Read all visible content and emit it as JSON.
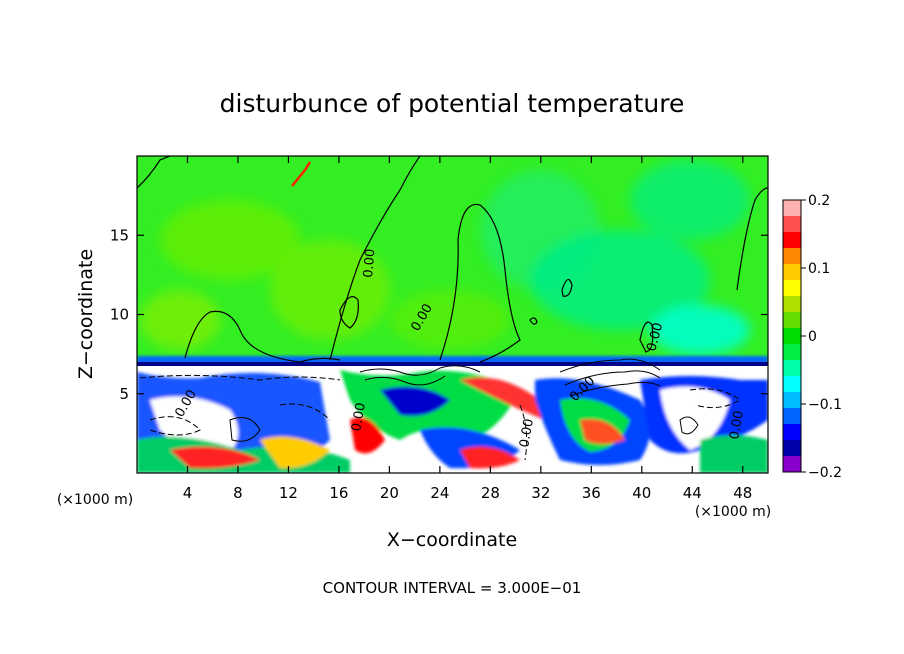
{
  "chart_data": {
    "type": "heatmap",
    "title": "disturbunce of potential temperature",
    "xlabel": "X−coordinate",
    "ylabel": "Z−coordinate",
    "x_unit_left": "(×1000 m)",
    "x_unit_right": "(×1000 m)",
    "footer": "CONTOUR INTERVAL = 3.000E−01",
    "xlim": [
      0,
      50
    ],
    "ylim": [
      0,
      20
    ],
    "x_ticks": [
      4,
      8,
      12,
      16,
      20,
      24,
      28,
      32,
      36,
      40,
      44,
      48
    ],
    "y_ticks": [
      5,
      10,
      15
    ],
    "colorbar": {
      "min": -0.2,
      "max": 0.2,
      "tick_values": [
        0.2,
        0.1,
        0,
        -0.1,
        -0.2
      ],
      "tick_labels": [
        "0.2",
        "0.1",
        "0",
        "−0.1",
        "−0.2"
      ],
      "colors": [
        "#ffb0b0",
        "#ff5050",
        "#ff0000",
        "#ff8800",
        "#ffcc00",
        "#ffff00",
        "#b0e000",
        "#66dd00",
        "#00dd00",
        "#00ee44",
        "#00ffaa",
        "#00ffff",
        "#00bbff",
        "#0066ff",
        "#0000ff",
        "#0000aa",
        "#8800cc"
      ]
    },
    "contour_labels": [
      "0.00",
      "0.00",
      "0.00",
      "0.00",
      "0.00",
      "0.00",
      "0.00",
      "0.00"
    ],
    "grid": false,
    "legend": "right"
  }
}
